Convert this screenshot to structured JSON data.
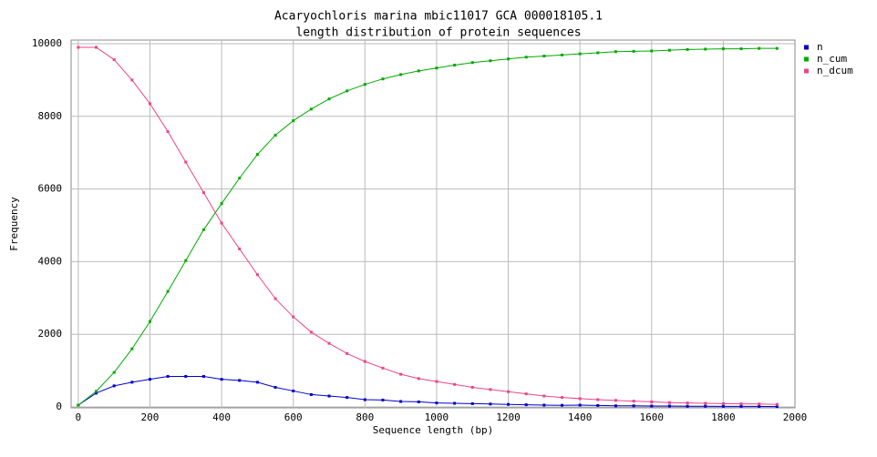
{
  "chart_data": {
    "type": "line",
    "title": "Acaryochloris marina mbic11017 GCA 000018105.1",
    "subtitle": "length distribution of protein sequences",
    "x_label": "Sequence length (bp)",
    "y_label": "Frequency",
    "x": [
      0,
      50,
      100,
      150,
      200,
      250,
      300,
      350,
      400,
      450,
      500,
      550,
      600,
      650,
      700,
      750,
      800,
      850,
      900,
      950,
      1000,
      1050,
      1100,
      1150,
      1200,
      1250,
      1300,
      1350,
      1400,
      1450,
      1500,
      1550,
      1600,
      1650,
      1700,
      1750,
      1800,
      1850,
      1900,
      1950
    ],
    "series": [
      {
        "name": "n",
        "color": "#0000cc",
        "values": [
          50,
          380,
          580,
          680,
          760,
          840,
          840,
          840,
          760,
          730,
          680,
          540,
          440,
          340,
          300,
          260,
          200,
          190,
          150,
          140,
          110,
          100,
          90,
          80,
          70,
          60,
          50,
          45,
          50,
          40,
          30,
          30,
          25,
          25,
          20,
          20,
          15,
          15,
          15,
          10
        ]
      },
      {
        "name": "n_cum",
        "color": "#00aa00",
        "values": [
          50,
          430,
          950,
          1600,
          2350,
          3180,
          4030,
          4880,
          5600,
          6300,
          6950,
          7480,
          7880,
          8200,
          8480,
          8700,
          8880,
          9030,
          9150,
          9250,
          9330,
          9410,
          9480,
          9530,
          9580,
          9630,
          9660,
          9690,
          9720,
          9750,
          9780,
          9790,
          9800,
          9820,
          9840,
          9850,
          9860,
          9860,
          9870,
          9870
        ]
      },
      {
        "name": "n_dcum",
        "color": "#ee4488",
        "values": [
          9900,
          9900,
          9560,
          9000,
          8350,
          7580,
          6740,
          5900,
          5060,
          4350,
          3640,
          2980,
          2480,
          2060,
          1750,
          1470,
          1250,
          1070,
          900,
          780,
          700,
          620,
          540,
          480,
          420,
          360,
          300,
          260,
          230,
          200,
          180,
          160,
          140,
          120,
          110,
          100,
          90,
          85,
          80,
          70
        ]
      }
    ],
    "xlim": [
      -20,
      2000
    ],
    "xticks": [
      0,
      200,
      400,
      600,
      800,
      1000,
      1200,
      1400,
      1600,
      1800,
      2000
    ],
    "ylim": [
      0,
      10000
    ],
    "yticks": [
      0,
      2000,
      4000,
      6000,
      8000,
      10000
    ],
    "grid": true,
    "legend": "right"
  }
}
